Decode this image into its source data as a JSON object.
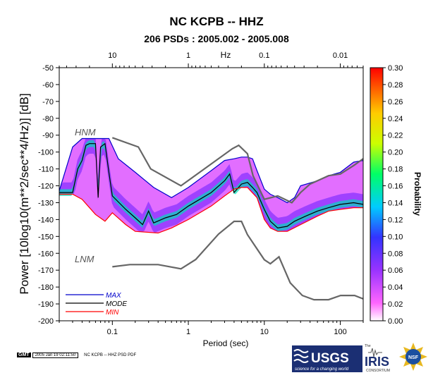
{
  "title": "NC KCPB -- HHZ",
  "subtitle": "206 PSDs : 2005.002 - 2005.008",
  "footer": {
    "gmt_badge": "GMT",
    "timestamp": "2005 Jan 19 02:11:50",
    "file_label": "NC KCPB -- HHZ PSD PDF"
  },
  "logos": {
    "usgs_text": "USGS",
    "usgs_tagline": "science for a changing world",
    "iris_prefix": "The",
    "iris_text": "IRIS",
    "iris_sub": "CONSORTIUM",
    "nsf_text": "NSF"
  },
  "colors": {
    "max_line": "#0000cc",
    "mode_line": "#000000",
    "min_line": "#ff0000",
    "model_line": "#666666",
    "pdf_low": "#ff66ff",
    "pdf_high": "#ff0000"
  },
  "chart_data": {
    "type": "heatmap",
    "title": "NC KCPB -- HHZ",
    "subtitle": "206 PSDs : 2005.002 - 2005.008",
    "xlabel": "Period (sec)",
    "ylabel": "Power [10log10(m**2/sec**4/Hz)] [dB]",
    "x_scale": "log",
    "xlim": [
      0.02,
      200
    ],
    "ylim": [
      -200,
      -50
    ],
    "x_ticks": [
      0.1,
      1,
      10,
      100
    ],
    "x_tick_labels": [
      "0.1",
      "1",
      "10",
      "100"
    ],
    "y_ticks": [
      -50,
      -60,
      -70,
      -80,
      -90,
      -100,
      -110,
      -120,
      -130,
      -140,
      -150,
      -160,
      -170,
      -180,
      -190,
      -200
    ],
    "y_tick_labels": [
      "-50",
      "-60",
      "-70",
      "-80",
      "-90",
      "-100",
      "-110",
      "-120",
      "-130",
      "-140",
      "-150",
      "-160",
      "-170",
      "-180",
      "-190",
      "-200"
    ],
    "top_axis": {
      "label": "Hz",
      "ticks": [
        10,
        1,
        0.1,
        0.01
      ],
      "tick_labels": [
        "10",
        "1",
        "0.1",
        "0.01"
      ]
    },
    "colorbar": {
      "label": "Probability",
      "range": [
        0.0,
        0.3
      ],
      "ticks": [
        0.0,
        0.02,
        0.04,
        0.06,
        0.08,
        0.1,
        0.12,
        0.14,
        0.16,
        0.18,
        0.2,
        0.22,
        0.24,
        0.26,
        0.28,
        0.3
      ],
      "tick_labels": [
        "0.00",
        "0.02",
        "0.04",
        "0.06",
        "0.08",
        "0.10",
        "0.12",
        "0.14",
        "0.16",
        "0.18",
        "0.20",
        "0.22",
        "0.24",
        "0.26",
        "0.28",
        "0.30"
      ]
    },
    "legend": {
      "placement": "bottom-left",
      "entries": [
        "MAX",
        "MODE",
        "MIN"
      ]
    },
    "model_labels": {
      "high": "HNM",
      "low": "LNM"
    },
    "series": [
      {
        "name": "MAX",
        "points": [
          [
            0.02,
            -123
          ],
          [
            0.03,
            -97
          ],
          [
            0.04,
            -92
          ],
          [
            0.06,
            -92
          ],
          [
            0.09,
            -92
          ],
          [
            0.12,
            -104
          ],
          [
            0.2,
            -112
          ],
          [
            0.35,
            -121
          ],
          [
            0.6,
            -127
          ],
          [
            1,
            -121
          ],
          [
            2,
            -111
          ],
          [
            3,
            -105
          ],
          [
            4,
            -104
          ],
          [
            5,
            -103
          ],
          [
            6,
            -103
          ],
          [
            7,
            -104
          ],
          [
            8,
            -111
          ],
          [
            10,
            -122
          ],
          [
            12,
            -125
          ],
          [
            15,
            -127
          ],
          [
            20,
            -130
          ],
          [
            25,
            -127
          ],
          [
            30,
            -120
          ],
          [
            50,
            -117
          ],
          [
            70,
            -114
          ],
          [
            100,
            -112
          ],
          [
            150,
            -106
          ],
          [
            200,
            -105
          ]
        ]
      },
      {
        "name": "MODE",
        "points": [
          [
            0.02,
            -124
          ],
          [
            0.03,
            -124
          ],
          [
            0.035,
            -110
          ],
          [
            0.04,
            -105
          ],
          [
            0.045,
            -96
          ],
          [
            0.05,
            -95
          ],
          [
            0.06,
            -95
          ],
          [
            0.065,
            -127
          ],
          [
            0.07,
            -97
          ],
          [
            0.08,
            -95
          ],
          [
            0.09,
            -112
          ],
          [
            0.1,
            -126
          ],
          [
            0.15,
            -134
          ],
          [
            0.2,
            -139
          ],
          [
            0.25,
            -143
          ],
          [
            0.3,
            -135
          ],
          [
            0.35,
            -142
          ],
          [
            0.5,
            -139
          ],
          [
            0.7,
            -137
          ],
          [
            1,
            -132
          ],
          [
            2,
            -124
          ],
          [
            3,
            -117
          ],
          [
            3.5,
            -113
          ],
          [
            4,
            -124
          ],
          [
            5,
            -119
          ],
          [
            6,
            -118
          ],
          [
            7,
            -121
          ],
          [
            8,
            -124
          ],
          [
            10,
            -134
          ],
          [
            12,
            -141
          ],
          [
            15,
            -145
          ],
          [
            20,
            -144
          ],
          [
            25,
            -141
          ],
          [
            35,
            -138
          ],
          [
            50,
            -135
          ],
          [
            70,
            -133
          ],
          [
            100,
            -131
          ],
          [
            150,
            -130
          ],
          [
            200,
            -131
          ]
        ]
      },
      {
        "name": "MIN",
        "points": [
          [
            0.02,
            -125
          ],
          [
            0.03,
            -125
          ],
          [
            0.04,
            -128
          ],
          [
            0.06,
            -137
          ],
          [
            0.08,
            -141
          ],
          [
            0.1,
            -136
          ],
          [
            0.15,
            -143
          ],
          [
            0.2,
            -147
          ],
          [
            0.4,
            -148
          ],
          [
            0.6,
            -145
          ],
          [
            1,
            -140
          ],
          [
            2,
            -132
          ],
          [
            3,
            -126
          ],
          [
            4,
            -122
          ],
          [
            5,
            -121
          ],
          [
            6,
            -121
          ],
          [
            8,
            -127
          ],
          [
            10,
            -140
          ],
          [
            12,
            -145
          ],
          [
            15,
            -147
          ],
          [
            20,
            -147
          ],
          [
            30,
            -143
          ],
          [
            50,
            -138
          ],
          [
            70,
            -135
          ],
          [
            100,
            -134
          ],
          [
            150,
            -133
          ],
          [
            200,
            -133
          ]
        ]
      },
      {
        "name": "HNM",
        "points": [
          [
            0.1,
            -91.5
          ],
          [
            0.22,
            -97
          ],
          [
            0.32,
            -110
          ],
          [
            0.8,
            -120
          ],
          [
            3.8,
            -98
          ],
          [
            4.6,
            -96
          ],
          [
            6,
            -101
          ],
          [
            7.1,
            -114
          ],
          [
            10,
            -128
          ],
          [
            15,
            -126
          ],
          [
            23,
            -130
          ],
          [
            30,
            -124
          ],
          [
            40,
            -119
          ],
          [
            50,
            -117
          ],
          [
            70,
            -114
          ],
          [
            100,
            -113
          ],
          [
            150,
            -108
          ],
          [
            200,
            -104
          ]
        ]
      },
      {
        "name": "LNM",
        "points": [
          [
            0.1,
            -168
          ],
          [
            0.17,
            -166.7
          ],
          [
            0.4,
            -166.7
          ],
          [
            0.8,
            -169.2
          ],
          [
            1.25,
            -163.7
          ],
          [
            2.5,
            -148.6
          ],
          [
            4,
            -141.1
          ],
          [
            5,
            -141.1
          ],
          [
            6,
            -149
          ],
          [
            10,
            -163.8
          ],
          [
            12,
            -166.2
          ],
          [
            15.6,
            -162.1
          ],
          [
            21.9,
            -177.5
          ],
          [
            31.6,
            -185
          ],
          [
            45,
            -187.5
          ],
          [
            70,
            -187.5
          ],
          [
            101,
            -185
          ],
          [
            154,
            -185
          ],
          [
            200,
            -187
          ]
        ]
      }
    ]
  }
}
